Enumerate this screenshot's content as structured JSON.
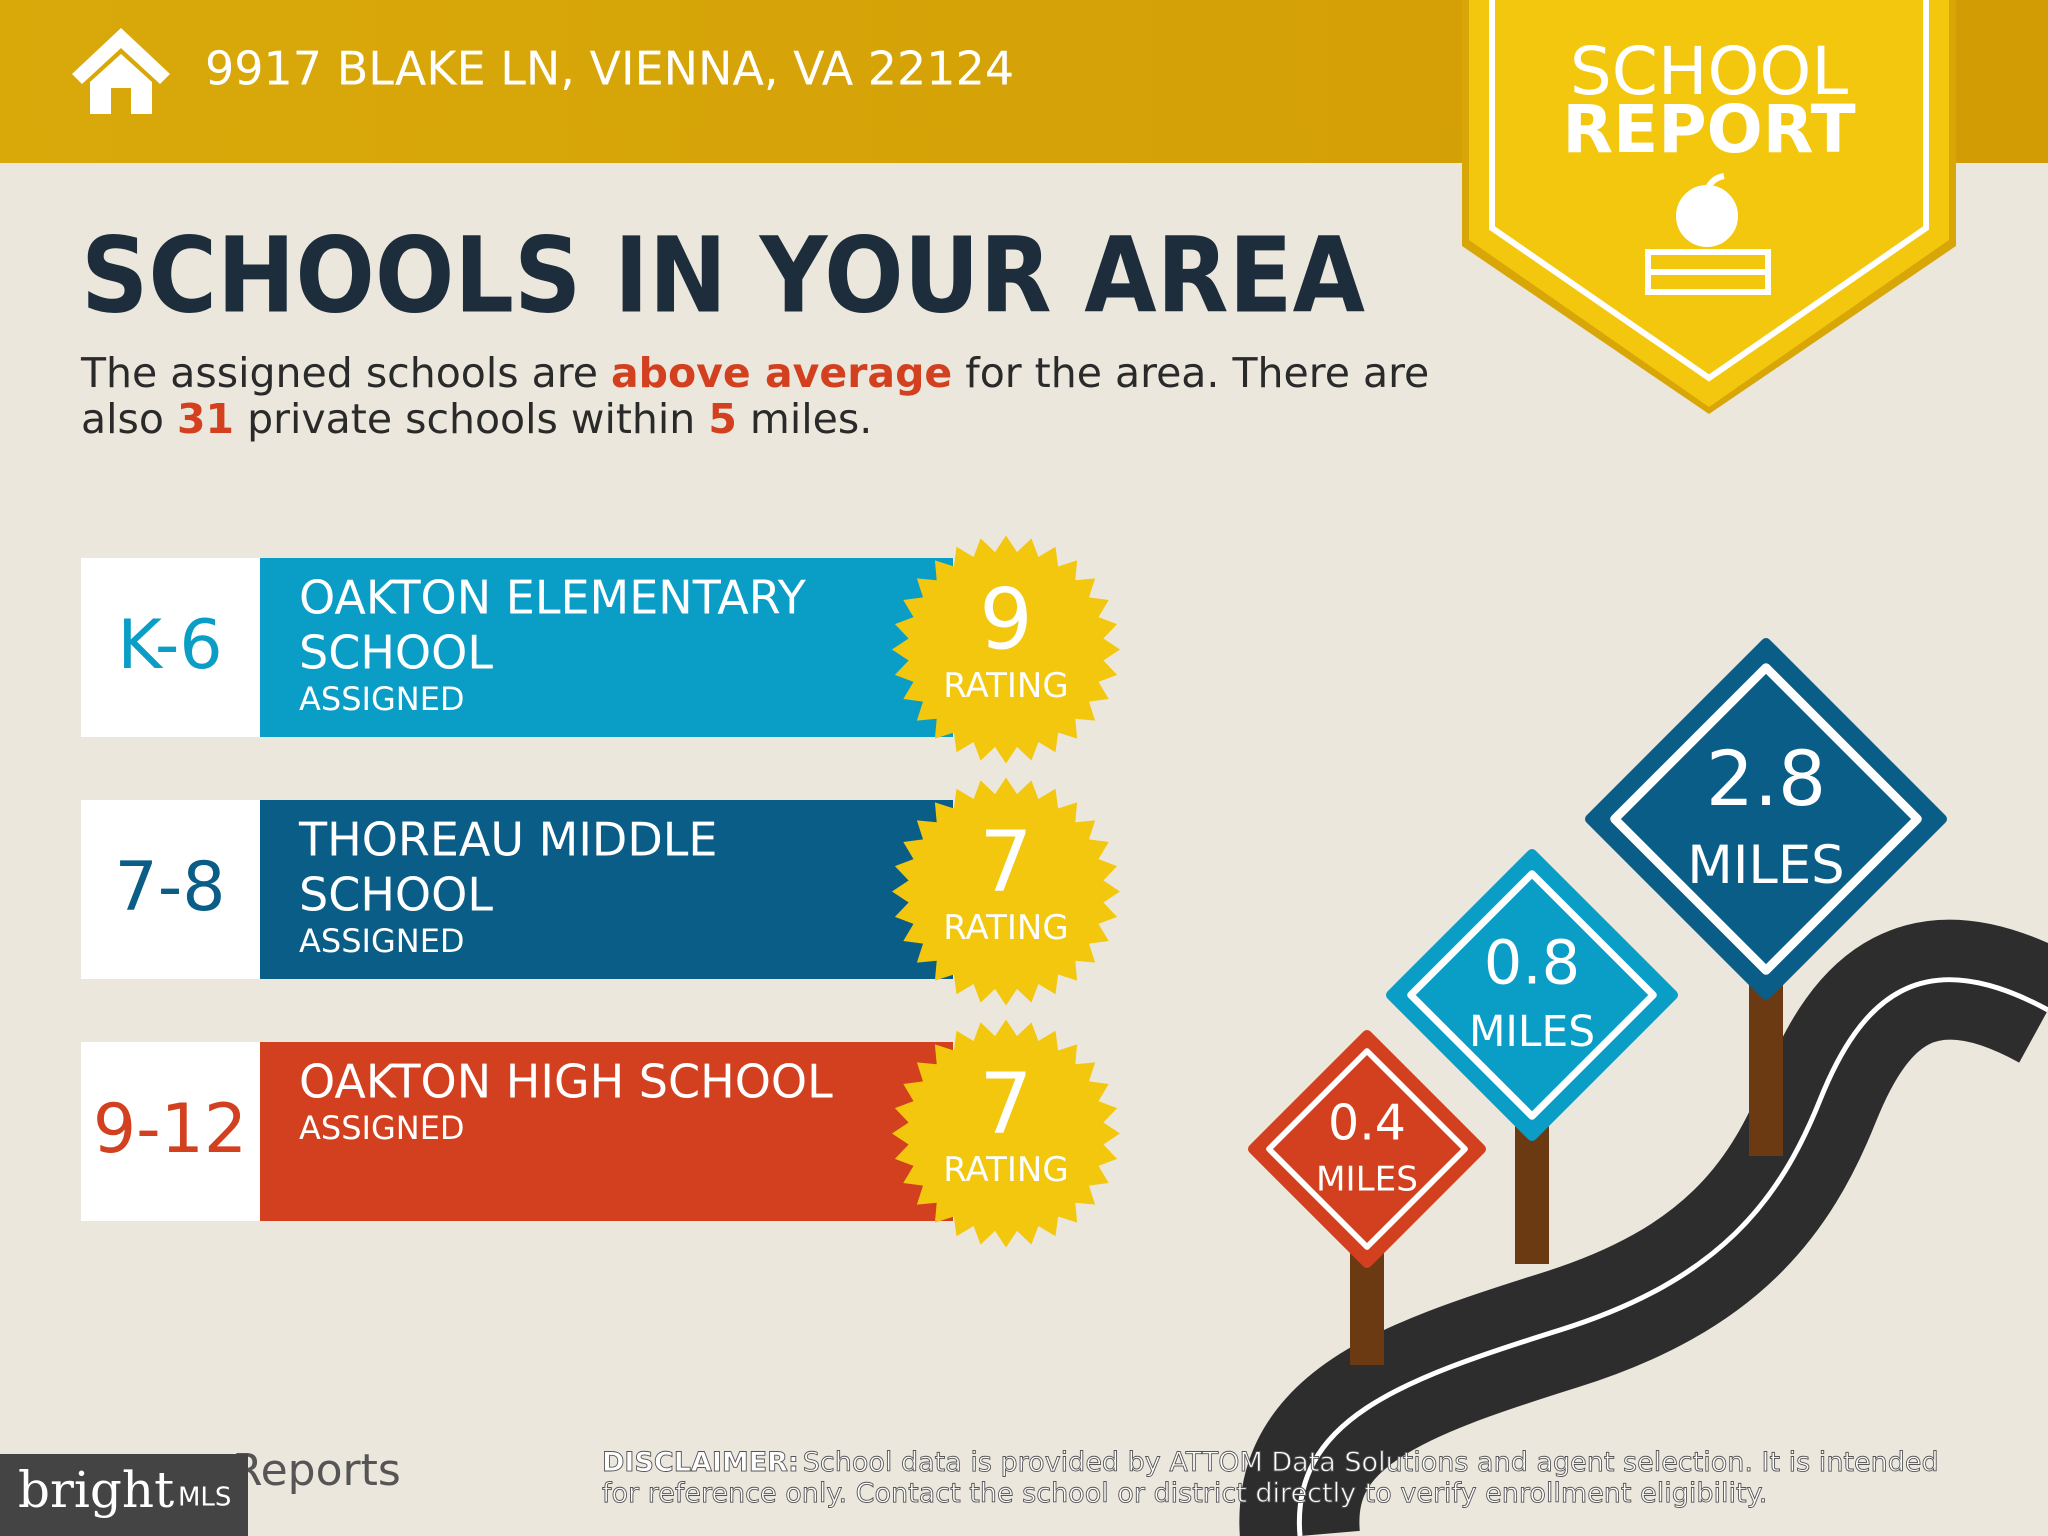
{
  "header": {
    "address": "9917 BLAKE LN, VIENNA, VA 22124"
  },
  "badge": {
    "lines": [
      "SCHOOL",
      "REPORT"
    ]
  },
  "heading": "SCHOOLS IN YOUR AREA",
  "intro": {
    "highlight_color": "#d2401f",
    "lines": [
      [
        {
          "text": "The assigned schools are "
        },
        {
          "text": "above average",
          "highlight": true
        },
        {
          "text": " for the area. There are"
        }
      ],
      [
        {
          "text": "also "
        },
        {
          "text": "31",
          "highlight": true
        },
        {
          "text": " private schools within "
        },
        {
          "text": "5",
          "highlight": true
        },
        {
          "text": " miles."
        }
      ]
    ]
  },
  "schools": [
    {
      "grades": "K-6",
      "name": [
        "OAKTON ELEMENTARY",
        "SCHOOL"
      ],
      "status": "ASSIGNED",
      "rating": 9,
      "rating_label": "RATING",
      "color": "#0a9ec7"
    },
    {
      "grades": "7-8",
      "name": [
        "THOREAU MIDDLE",
        "SCHOOL"
      ],
      "status": "ASSIGNED",
      "rating": 7,
      "rating_label": "RATING",
      "color": "#0a5d86"
    },
    {
      "grades": "9-12",
      "name": [
        "OAKTON HIGH SCHOOL"
      ],
      "status": "ASSIGNED",
      "rating": 7,
      "rating_label": "RATING",
      "color": "#d2401f"
    }
  ],
  "signs": [
    {
      "distance": 0.4,
      "unit": "MILES",
      "color": "#d2401f"
    },
    {
      "distance": 0.8,
      "unit": "MILES",
      "color": "#0a9ec7"
    },
    {
      "distance": 2.8,
      "unit": "MILES",
      "color": "#0a5d86"
    }
  ],
  "footer": {
    "logo": {
      "word": "bright",
      "suffix": "MLS"
    },
    "reports": "Reports",
    "disclaimer": {
      "label": "DISCLAIMER:",
      "lines": [
        "School data is provided by ATTOM Data Solutions and agent selection. It is intended",
        "for reference only. Contact the school or district directly to verify enrollment eligibility."
      ]
    }
  }
}
